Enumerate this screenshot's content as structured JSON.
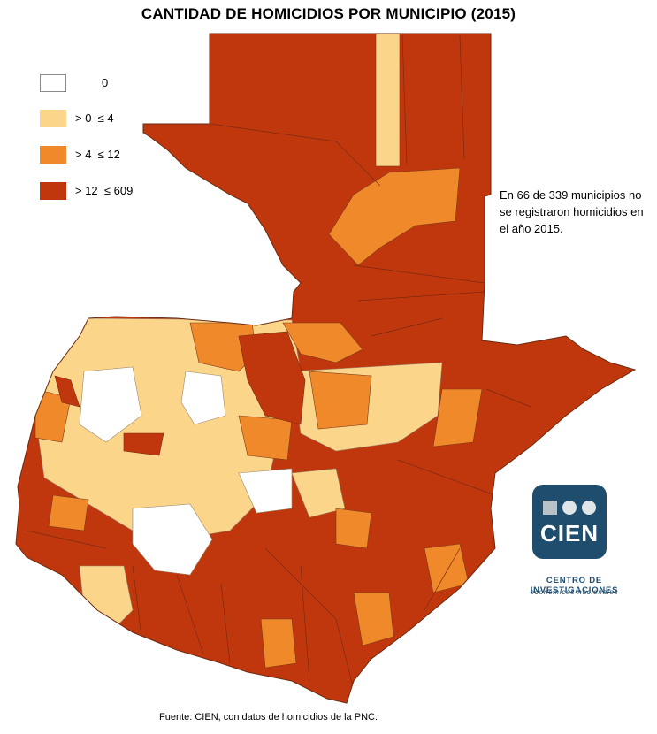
{
  "title": "CANTIDAD DE HOMICIDIOS POR MUNICIPIO (2015)",
  "legend": [
    {
      "label": "0",
      "color": "#ffffff"
    },
    {
      "label": "> 0  ≤ 4",
      "color": "#fad58a"
    },
    {
      "label": "> 4  ≤ 12",
      "color": "#f0892a"
    },
    {
      "label": "> 12  ≤ 609",
      "color": "#c0370e"
    }
  ],
  "note": "En 66 de 339 municipios no se registraron homicidios en el año 2015.",
  "logo": {
    "text": "CIEN",
    "color": "#1f4d6e"
  },
  "org": {
    "line1": "CENTRO DE INVESTIGACIONES",
    "line2": "económicas nacionales"
  },
  "source": "Fuente: CIEN, con datos de homicidios de la PNC.",
  "map": {
    "region": "Guatemala",
    "unit": "municipio",
    "municipalities_total": 339,
    "municipalities_zero": 66
  }
}
